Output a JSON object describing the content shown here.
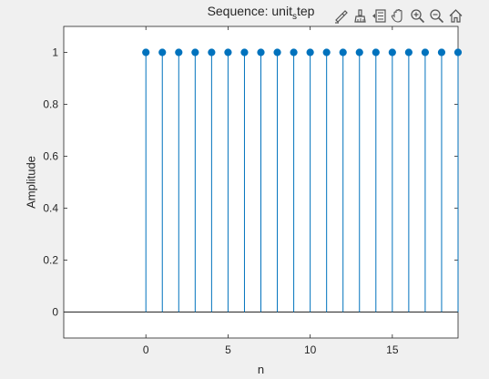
{
  "figure": {
    "title_main": "Sequence: unit",
    "title_sub": "s",
    "title_tail": "tep",
    "xlabel": "n",
    "ylabel": "Amplitude"
  },
  "toolbar": {
    "icons": [
      "brush-icon",
      "paint-icon",
      "legend-icon",
      "pan-icon",
      "zoom-in-icon",
      "zoom-out-icon",
      "home-icon"
    ]
  },
  "colors": {
    "stem": "#0072bd",
    "axis": "#262626",
    "background": "#f0f0f0",
    "axes_background": "#ffffff"
  },
  "chart_data": {
    "type": "stem",
    "title": "Sequence: unit_step",
    "xlabel": "n",
    "ylabel": "Amplitude",
    "x": [
      0,
      1,
      2,
      3,
      4,
      5,
      6,
      7,
      8,
      9,
      10,
      11,
      12,
      13,
      14,
      15,
      16,
      17,
      18,
      19
    ],
    "values": [
      1,
      1,
      1,
      1,
      1,
      1,
      1,
      1,
      1,
      1,
      1,
      1,
      1,
      1,
      1,
      1,
      1,
      1,
      1,
      1
    ],
    "xlim": [
      -5,
      19
    ],
    "ylim": [
      -0.1,
      1.1
    ],
    "xticks": [
      0,
      5,
      10,
      15
    ],
    "xtick_labels": [
      "0",
      "5",
      "10",
      "15"
    ],
    "yticks": [
      0,
      0.2,
      0.4,
      0.6,
      0.8,
      1
    ],
    "ytick_labels": [
      "0",
      "0.2",
      "0.4",
      "0.6",
      "0.8",
      "1"
    ],
    "grid": false,
    "baseline": 0
  }
}
